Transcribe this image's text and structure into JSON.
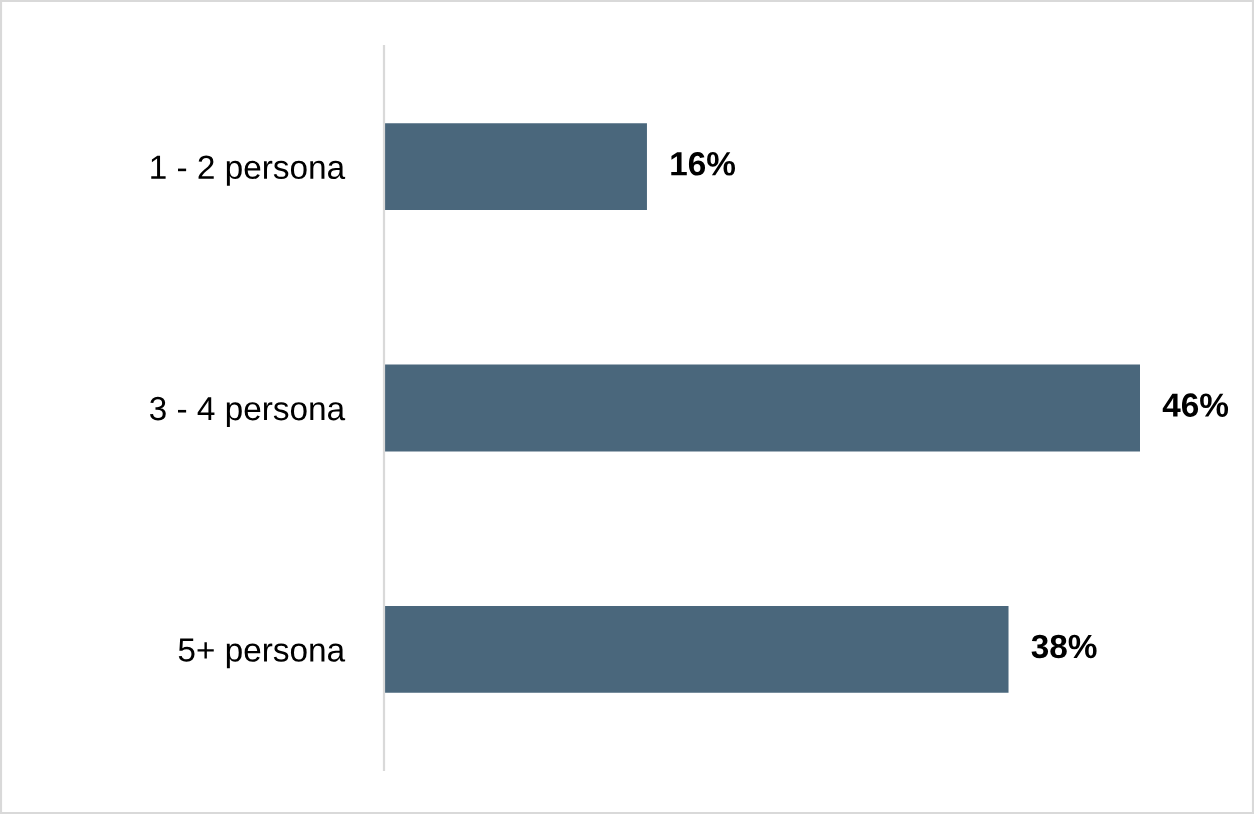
{
  "chart_data": {
    "type": "bar",
    "orientation": "horizontal",
    "categories": [
      "1 - 2 persona",
      "3 - 4 persona",
      "5+ persona"
    ],
    "values": [
      16,
      46,
      38
    ],
    "value_labels": [
      "16%",
      "46%",
      "38%"
    ],
    "color": "#4a677c",
    "tick_labels": "y",
    "grid": false,
    "legend": false
  }
}
